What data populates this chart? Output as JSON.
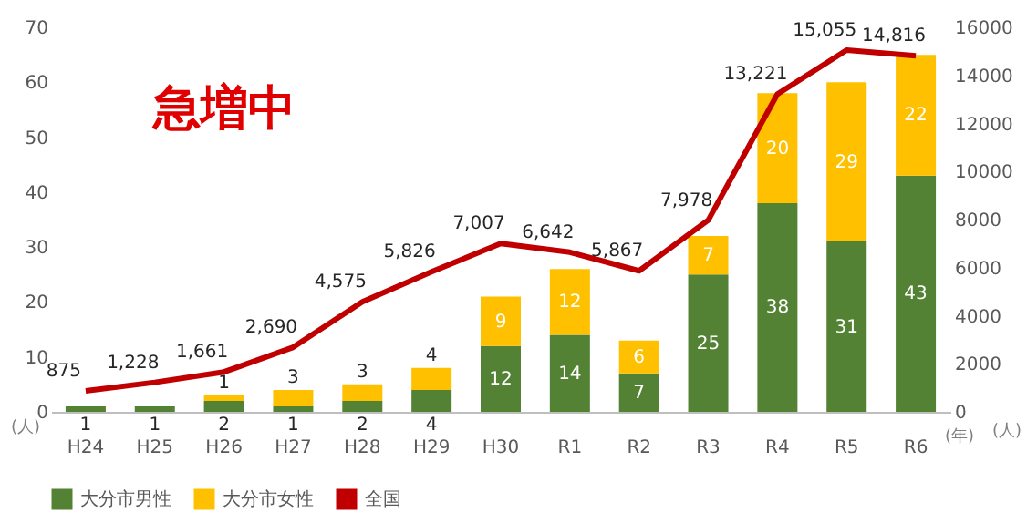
{
  "chart_data": {
    "type": "bar",
    "stacked": true,
    "categories": [
      "H24",
      "H25",
      "H26",
      "H27",
      "H28",
      "H29",
      "H30",
      "R1",
      "R2",
      "R3",
      "R4",
      "R5",
      "R6"
    ],
    "series": [
      {
        "name": "大分市男性",
        "color": "#548235",
        "values": [
          1,
          1,
          2,
          1,
          2,
          4,
          12,
          14,
          7,
          25,
          38,
          31,
          43
        ]
      },
      {
        "name": "大分市女性",
        "color": "#ffc000",
        "values": [
          null,
          null,
          1,
          3,
          3,
          4,
          9,
          12,
          6,
          7,
          20,
          29,
          22
        ]
      },
      {
        "name": "全国",
        "type": "line",
        "axis": "y2",
        "color": "#c00000",
        "values": [
          875,
          1228,
          1661,
          2690,
          4575,
          5826,
          7007,
          6642,
          5867,
          7978,
          13221,
          15055,
          14816
        ],
        "value_labels": [
          "875",
          "1,228",
          "1,661",
          "2,690",
          "4,575",
          "5,826",
          "7,007",
          "6,642",
          "5,867",
          "7,978",
          "13,221",
          "15,055",
          "14,816"
        ]
      }
    ],
    "ylim": [
      0,
      70
    ],
    "yticks": [
      0,
      10,
      20,
      30,
      40,
      50,
      60,
      70
    ],
    "y2lim": [
      0,
      16000
    ],
    "y2ticks": [
      0,
      2000,
      4000,
      6000,
      8000,
      10000,
      12000,
      14000,
      16000
    ],
    "ylabel": "(人)",
    "y2label": "(人)",
    "xlabel": "(年)",
    "data_labels": true,
    "legend": "bottom",
    "grid": false,
    "annotations": [
      "急増中"
    ]
  }
}
